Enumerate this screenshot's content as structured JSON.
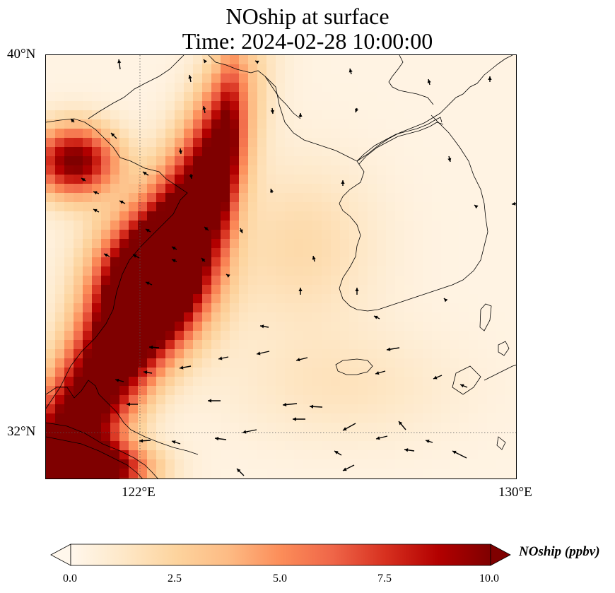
{
  "figure": {
    "title_line1": "NOship at surface",
    "title_line2": "Time: 2024-02-28 10:00:00"
  },
  "map": {
    "projection": "PlateCarree",
    "extent_lon": [
      120,
      130
    ],
    "extent_lat": [
      31,
      40
    ],
    "lat_ticks": [
      {
        "value": 40,
        "label": "40°N"
      },
      {
        "value": 32,
        "label": "32°N"
      }
    ],
    "lon_ticks": [
      {
        "value": 122,
        "label": "122°E"
      },
      {
        "value": 130,
        "label": "130°E"
      }
    ],
    "gridlines": "dotted",
    "features": [
      "coastline",
      "land border"
    ],
    "field": {
      "variable": "NOship",
      "units": "ppbv",
      "level": "surface",
      "colormap": "OrRd",
      "vmin": 0,
      "vmax": 10,
      "extend": "both"
    },
    "wind_vectors": true
  },
  "colorbar": {
    "label": "NOship (ppbv)",
    "ticks": [
      "0.0",
      "2.5",
      "5.0",
      "7.5",
      "10.0"
    ],
    "colors": [
      "#fff7ec",
      "#fee8c8",
      "#fdd49e",
      "#fdbb84",
      "#fc8d59",
      "#ef6548",
      "#d7301f",
      "#b30000",
      "#7f0000"
    ]
  }
}
